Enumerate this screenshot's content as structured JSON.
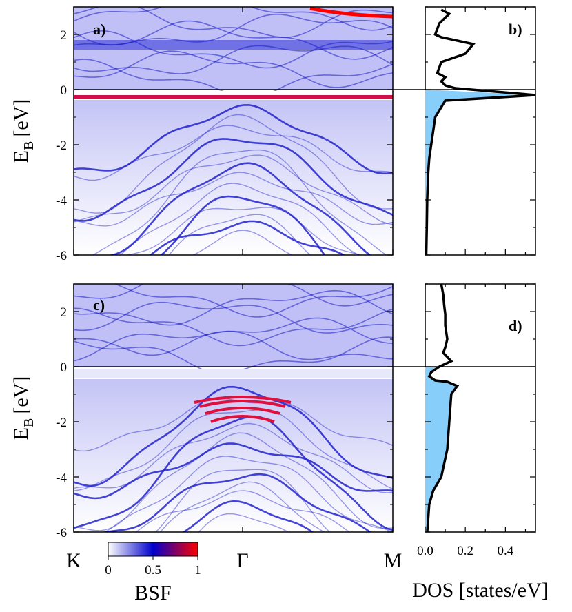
{
  "chart_data": [
    {
      "type": "heatmap",
      "panel_label": "a)",
      "ylabel_main": "E",
      "ylabel_sub": "B",
      "ylabel_unit": "[eV]",
      "ylim": [
        -6,
        3
      ],
      "yticks": [
        "2",
        "0",
        "-2",
        "-4",
        "-6"
      ],
      "fermi_level": 0,
      "gap": [
        -0.25,
        -0.1
      ],
      "flat_band": -0.18,
      "top_band": 2.7
    },
    {
      "type": "line",
      "panel_label": "b)",
      "ylim": [
        -6,
        3
      ],
      "xlim": [
        0,
        0.55
      ],
      "fill_below": 0,
      "fill_color": "#87cefa",
      "x": [
        0.08,
        0.12,
        0.07,
        0.05,
        0.08,
        0.24,
        0.2,
        0.08,
        0.06,
        0.1,
        0.08,
        0.1,
        0.15,
        0.55,
        0.1,
        0.05,
        0.04,
        0.03,
        0.02,
        0.015,
        0.01,
        0.008,
        0.005
      ],
      "y": [
        2.9,
        2.75,
        2.4,
        2.0,
        1.9,
        1.65,
        1.3,
        1.0,
        0.6,
        0.45,
        0.3,
        0.15,
        0.05,
        -0.2,
        -0.4,
        -1.0,
        -1.5,
        -2.0,
        -2.5,
        -3.0,
        -4.0,
        -5.0,
        -6.0
      ]
    },
    {
      "type": "heatmap",
      "panel_label": "c)",
      "ylabel_main": "E",
      "ylabel_sub": "B",
      "ylabel_unit": "[eV]",
      "ylim": [
        -6,
        3
      ],
      "yticks": [
        "2",
        "0",
        "-2",
        "-4",
        "-6"
      ],
      "fermi_level": 0,
      "gap": [
        -0.45,
        -0.3
      ],
      "xticks": [
        "K",
        "Γ",
        "M"
      ],
      "red_bands": [
        -1.15,
        -1.3,
        -1.55,
        -1.85
      ]
    },
    {
      "type": "line",
      "panel_label": "d)",
      "ylim": [
        -6,
        3
      ],
      "xlim": [
        0,
        0.55
      ],
      "fill_below": 0,
      "fill_color": "#87cefa",
      "xticks": [
        "0.0",
        "0.2",
        "0.4"
      ],
      "xlabel": "DOS [states/eV]",
      "x": [
        0.08,
        0.09,
        0.095,
        0.1,
        0.1,
        0.11,
        0.1,
        0.09,
        0.13,
        0.07,
        0.03,
        0.02,
        0.05,
        0.11,
        0.16,
        0.13,
        0.12,
        0.11,
        0.08,
        0.04,
        0.02,
        0.015,
        0.01
      ],
      "y": [
        3.0,
        2.6,
        2.2,
        1.9,
        1.5,
        1.0,
        0.7,
        0.5,
        0.2,
        0.0,
        -0.2,
        -0.35,
        -0.5,
        -0.55,
        -0.7,
        -1.0,
        -2.0,
        -3.0,
        -4.0,
        -4.5,
        -5.0,
        -5.5,
        -6.0
      ]
    }
  ],
  "colorbar": {
    "label": "BSF",
    "ticks": [
      "0",
      "0.5",
      "1"
    ],
    "colors": [
      "#ffffff",
      "#0000cc",
      "#ff0000"
    ]
  }
}
